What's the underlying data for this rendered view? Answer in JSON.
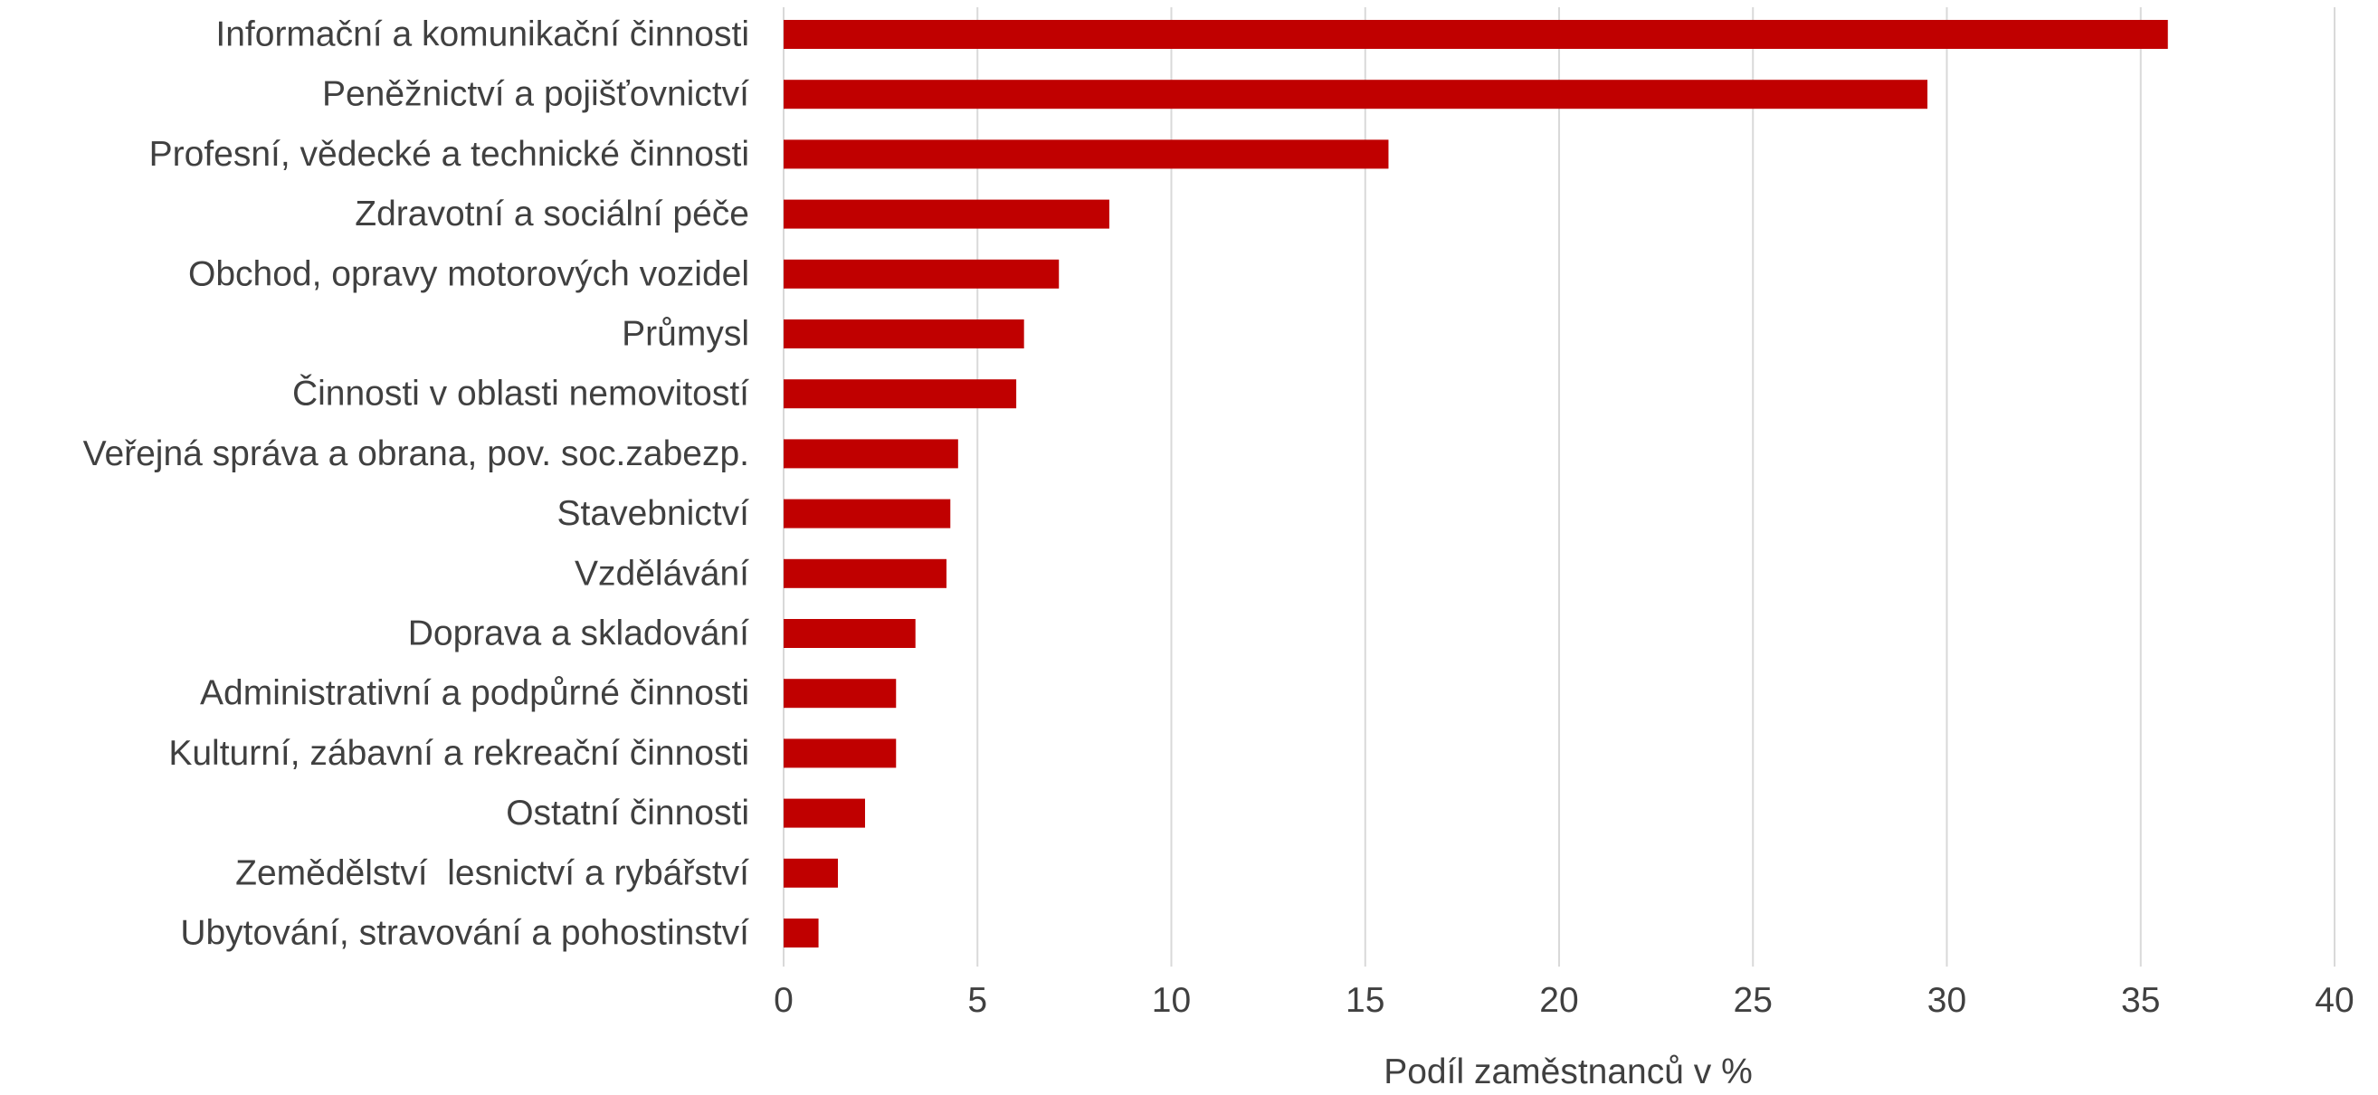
{
  "chart_data": {
    "type": "bar",
    "orientation": "horizontal",
    "categories": [
      "Informační a komunikační činnosti",
      "Peněžnictví a pojišťovnictví",
      "Profesní, vědecké a technické činnosti",
      "Zdravotní a sociální péče",
      "Obchod, opravy motorových vozidel",
      "Průmysl",
      "Činnosti v oblasti nemovitostí",
      "Veřejná správa a obrana, pov. soc.zabezp.",
      "Stavebnictví",
      "Vzdělávání",
      "Doprava a skladování",
      "Administrativní a podpůrné činnosti",
      "Kulturní, zábavní a rekreační činnosti",
      "Ostatní činnosti",
      "Zemědělství  lesnictví a rybářství",
      "Ubytování, stravování a pohostinství"
    ],
    "values": [
      35.7,
      29.5,
      15.6,
      8.4,
      7.1,
      6.2,
      6.0,
      4.5,
      4.3,
      4.2,
      3.4,
      2.9,
      2.9,
      2.1,
      1.4,
      0.9
    ],
    "xlabel": "Podíl zaměstnanců v %",
    "ylabel": "",
    "xlim": [
      0,
      40
    ],
    "xticks": [
      "0",
      "5",
      "10",
      "15",
      "20",
      "25",
      "30",
      "35",
      "40"
    ],
    "bar_color": "#c00000",
    "grid": "vertical",
    "legend": "none"
  }
}
